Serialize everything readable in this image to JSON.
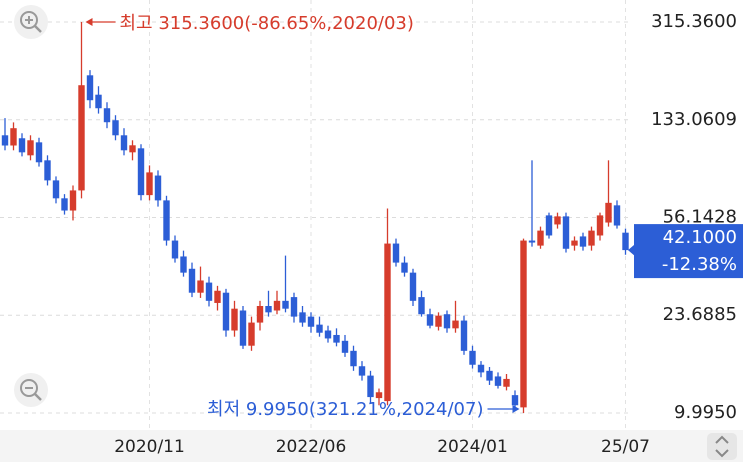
{
  "chart_data": {
    "type": "candlestick",
    "log_scale": true,
    "grid": true,
    "up_color": "#d63c2c",
    "down_color": "#2c5ed6",
    "ylim": [
      8.6,
      383
    ],
    "yticks": [
      {
        "value": 315.36,
        "label": "315.3600"
      },
      133.0609,
      56.1428,
      23.6885,
      {
        "value": 9.995,
        "label": "9.9950"
      }
    ],
    "categories": [
      null,
      null,
      null,
      null,
      null,
      null,
      null,
      null,
      null,
      null,
      null,
      null,
      null,
      null,
      null,
      null,
      null,
      "2020/11",
      null,
      null,
      null,
      null,
      null,
      null,
      null,
      null,
      null,
      null,
      null,
      null,
      null,
      null,
      null,
      null,
      null,
      null,
      "2022/06",
      null,
      null,
      null,
      null,
      null,
      null,
      null,
      null,
      null,
      null,
      null,
      null,
      null,
      null,
      null,
      null,
      null,
      null,
      "2024/01",
      null,
      null,
      null,
      null,
      null,
      null,
      null,
      null,
      null,
      null,
      null,
      null,
      null,
      null,
      null,
      null,
      null,
      "25/07"
    ],
    "open": [
      116,
      106,
      113,
      97.2,
      109,
      93,
      77.9,
      66.5,
      59.7,
      71.3,
      197,
      166,
      147.3,
      132.5,
      116,
      99.8,
      103.4,
      68.4,
      81.3,
      65.3,
      45.8,
      39.8,
      35.7,
      28.9,
      31.6,
      26.4,
      28.9,
      20.7,
      24.7,
      18.1,
      22.2,
      25.7,
      24.7,
      26.9,
      27.8,
      24.3,
      23.4,
      21.8,
      20.7,
      19.9,
      18.9,
      17.3,
      15.1,
      13.9,
      11.4,
      11.1,
      44.6,
      37.7,
      34.5,
      27.8,
      23.9,
      21.4,
      23.9,
      21.1,
      22.6,
      17.3,
      15.3,
      14.5,
      13.8,
      12.6,
      11.7,
      10.5,
      45.8,
      43.8,
      57.2,
      52.8,
      56.7,
      43.8,
      47.5,
      43.8,
      47.9,
      53.7,
      62.5,
      49.1
    ],
    "high": [
      135,
      130,
      118.1,
      116,
      113.5,
      97.2,
      80.7,
      69,
      74.5,
      315.36,
      206.2,
      178.9,
      155.3,
      138.5,
      123.5,
      111,
      107.2,
      88.9,
      85.1,
      68,
      47.9,
      41.9,
      37.7,
      36.4,
      33.3,
      30.7,
      29.9,
      26.9,
      25.7,
      23.4,
      26.9,
      29.4,
      29.4,
      40.1,
      28.9,
      25.7,
      24.3,
      23.4,
      21.6,
      21.1,
      19.9,
      18.1,
      15.8,
      14.5,
      12.4,
      60.8,
      46.6,
      39.8,
      35.7,
      29.4,
      25.1,
      24.3,
      24.7,
      26.9,
      23.6,
      18.1,
      15.8,
      15.0,
      14.3,
      14.1,
      12.2,
      46.6,
      93.0,
      51.8,
      58.6,
      58.6,
      58.6,
      47.5,
      49.1,
      51.8,
      58.6,
      93.0,
      65.3,
      50.9
    ],
    "low": [
      101.6,
      101.6,
      96.3,
      93,
      88,
      74.5,
      63.6,
      57.6,
      54.7,
      66.5,
      147.3,
      140.5,
      123.5,
      111,
      97.2,
      93,
      65.3,
      65.3,
      61.8,
      43.8,
      37.7,
      33.3,
      27.8,
      27.6,
      25.6,
      24.7,
      19.6,
      19.6,
      17.6,
      17.3,
      20.7,
      23.4,
      23.9,
      24.3,
      22.2,
      21.4,
      20.3,
      19.6,
      18.6,
      18.0,
      16.4,
      14.5,
      13.3,
      10.9,
      10.7,
      10.7,
      36.4,
      33.3,
      25.7,
      23.4,
      21.1,
      20.7,
      20.3,
      20.3,
      16.7,
      14.8,
      13.7,
      12.8,
      12.4,
      12.2,
      10.4,
      9.995,
      43.4,
      42.6,
      46.6,
      50.9,
      41.2,
      41.9,
      41.9,
      41.9,
      45.8,
      51.8,
      50.9,
      40.4
    ],
    "close": [
      106,
      123.5,
      99.8,
      111,
      91.4,
      77.9,
      66.5,
      59.7,
      71.3,
      180.5,
      158.1,
      147.3,
      130.2,
      116,
      101.6,
      106.2,
      68.4,
      83.6,
      65.3,
      45.8,
      39.1,
      34.5,
      28.9,
      32.2,
      26.9,
      29.4,
      20.7,
      25.1,
      18.1,
      22.2,
      25.7,
      24.3,
      26.9,
      25.1,
      23.4,
      22.2,
      21.4,
      20.3,
      19.3,
      18.6,
      17.0,
      15.1,
      13.9,
      11.5,
      12.0,
      44.6,
      37.7,
      34.5,
      26.9,
      23.9,
      21.6,
      23.6,
      21.1,
      22.6,
      17.3,
      15.3,
      14.3,
      13.3,
      12.7,
      13.5,
      10.7,
      45.8,
      45.0,
      50.0,
      47.9,
      56.7,
      42.6,
      45.8,
      43.4,
      50.0,
      57.2,
      63.9,
      52.3,
      42.1
    ],
    "last": {
      "value": 42.1,
      "label": "42.1000"
    },
    "change_label": "-12.38%",
    "max_annotation": "최고 315.3600(-86.65%,2020/03)",
    "min_annotation": "최저 9.9950(321.21%,2024/07)"
  }
}
